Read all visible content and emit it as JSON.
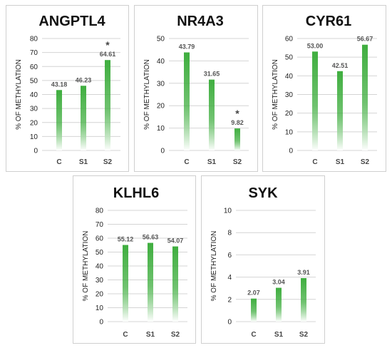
{
  "chart_data": [
    {
      "type": "bar",
      "title": "ANGPTL4",
      "ylabel": "% OF METHYLATION",
      "categories": [
        "C",
        "S1",
        "S2"
      ],
      "values": [
        43.18,
        46.23,
        64.61
      ],
      "value_labels": [
        "43.18",
        "46.23",
        "64.61"
      ],
      "ylim": [
        0,
        80
      ],
      "ytick_step": 10,
      "annotations": [
        {
          "category": "S2",
          "text": "*"
        }
      ]
    },
    {
      "type": "bar",
      "title": "NR4A3",
      "ylabel": "% OF METHYLATION",
      "categories": [
        "C",
        "S1",
        "S2"
      ],
      "values": [
        43.79,
        31.65,
        9.82
      ],
      "value_labels": [
        "43.79",
        "31.65",
        "9.82"
      ],
      "ylim": [
        0,
        50
      ],
      "ytick_step": 10,
      "annotations": [
        {
          "category": "S2",
          "text": "*"
        }
      ]
    },
    {
      "type": "bar",
      "title": "CYR61",
      "ylabel": "% OF METHYLATION",
      "categories": [
        "C",
        "S1",
        "S2"
      ],
      "values": [
        53.0,
        42.51,
        56.67
      ],
      "value_labels": [
        "53.00",
        "42.51",
        "56.67"
      ],
      "ylim": [
        0,
        60
      ],
      "ytick_step": 10,
      "annotations": []
    },
    {
      "type": "bar",
      "title": "KLHL6",
      "ylabel": "% OF METHYLATION",
      "categories": [
        "C",
        "S1",
        "S2"
      ],
      "values": [
        55.12,
        56.63,
        54.07
      ],
      "value_labels": [
        "55.12",
        "56.63",
        "54.07"
      ],
      "ylim": [
        0,
        80
      ],
      "ytick_step": 10,
      "annotations": []
    },
    {
      "type": "bar",
      "title": "SYK",
      "ylabel": "% OF METHYLATION",
      "categories": [
        "C",
        "S1",
        "S2"
      ],
      "values": [
        2.07,
        3.04,
        3.91
      ],
      "value_labels": [
        "2.07",
        "3.04",
        "3.91"
      ],
      "ylim": [
        0,
        10
      ],
      "ytick_step": 2,
      "annotations": []
    }
  ],
  "colors": {
    "bar_top": "#3fae3f",
    "bar_bottom": "#ffffff",
    "grid": "#d4d4d4",
    "panel_border": "#cfcfcf"
  }
}
